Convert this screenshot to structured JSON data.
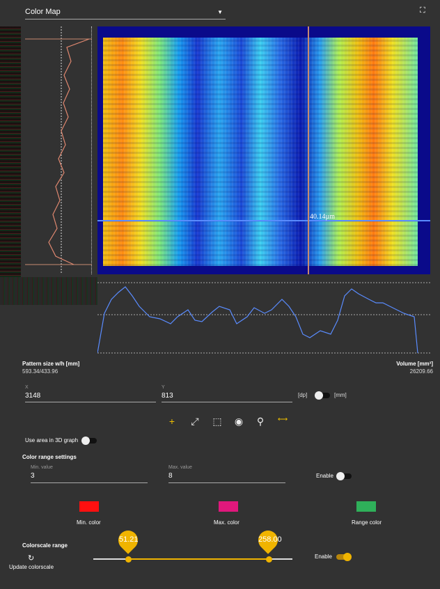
{
  "header": {
    "view_select": "Color Map"
  },
  "map": {
    "crosshair_label": "40.14µm"
  },
  "stats": {
    "pattern_label": "Pattern size w/h [mm]",
    "pattern_value": "593.34/433.96",
    "volume_label": "Volume [mm³]",
    "volume_value": "26209.66"
  },
  "coords": {
    "x_label": "X",
    "x_value": "3148",
    "y_label": "Y",
    "y_value": "813",
    "unit_left": "[dp]",
    "unit_right": "[mm]"
  },
  "use_area_label": "Use area in 3D graph",
  "color_range": {
    "title": "Color range settings",
    "min_label": "Min. value",
    "min_value": "3",
    "max_label": "Max. value",
    "max_value": "8",
    "enable_label": "Enable",
    "min_color_label": "Min. color",
    "max_color_label": "Max. color",
    "range_color_label": "Range color",
    "min_color": "#ff1010",
    "max_color": "#e0187c",
    "range_color": "#2fb05a"
  },
  "colorscale": {
    "title": "Colorscale range",
    "low": "51.21",
    "high": "258.00",
    "low_fraction": 0.17,
    "high_fraction": 0.88,
    "enable_label": "Enable",
    "update_label": "Update colorscale"
  }
}
